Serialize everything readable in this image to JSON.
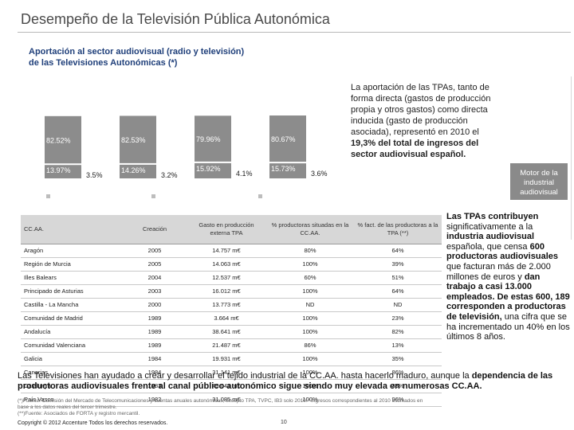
{
  "header": {
    "title": "Desempeño de la Televisión Pública Autonómica"
  },
  "chart_data": {
    "type": "bar",
    "title_line1": "Aportación al sector audiovisual (radio y televisión)",
    "title_line2": "de las Televisiones Autonómicas (*)",
    "categories": [
      "",
      "",
      "",
      ""
    ],
    "series": [
      {
        "name": "stacked-top",
        "values": [
          82.52,
          82.53,
          79.96,
          80.67
        ],
        "labels": [
          "82.52%",
          "82.53%",
          "79.96%",
          "80.67%"
        ],
        "color": "#8c8c8c"
      },
      {
        "name": "stacked-bottom",
        "values": [
          13.97,
          14.26,
          15.92,
          15.73
        ],
        "labels": [
          "13.97%",
          "14.26%",
          "15.92%",
          "15.73%"
        ],
        "color": "#8c8c8c"
      },
      {
        "name": "side",
        "values": [
          3.5,
          3.2,
          4.1,
          3.6
        ],
        "labels": [
          "3.5%",
          "3.2%",
          "4.1%",
          "3.6%"
        ],
        "color": "#8c8c8c"
      }
    ],
    "ylim": [
      0,
      100
    ],
    "legend": "bottom"
  },
  "side_text": {
    "part1": "La aportación de las TPAs, tanto de forma directa (gastos de producción propia y otros gastos) como directa inducida (gasto de producción asociada), representó en 2010 el ",
    "bold": "19,3% del total de ingresos del sector audiovisual español.",
    "badge": "Motor de la industrial audiovisual"
  },
  "table": {
    "headers": [
      "CC.AA.",
      "Creación",
      "Gasto en producción externa TPA",
      "% productoras situadas en la CC.AA.",
      "% fact. de las productoras a la TPA (**)"
    ],
    "rows": [
      [
        "Aragón",
        "2005",
        "14.757 m€",
        "80%",
        "64%"
      ],
      [
        "Región de Murcia",
        "2005",
        "14.063 m€",
        "100%",
        "39%"
      ],
      [
        "Illes Balears",
        "2004",
        "12.537 m€",
        "60%",
        "51%"
      ],
      [
        "Principado de Asturias",
        "2003",
        "16.012 m€",
        "100%",
        "64%"
      ],
      [
        "Castilla - La Mancha",
        "2000",
        "13.773 m€",
        "ND",
        "ND"
      ],
      [
        "Comunidad de Madrid",
        "1989",
        "3.664 m€",
        "100%",
        "23%"
      ],
      [
        "Andalucía",
        "1989",
        "38.641 m€",
        "100%",
        "82%"
      ],
      [
        "Comunidad Valenciana",
        "1989",
        "21.487 m€",
        "86%",
        "13%"
      ],
      [
        "Galicia",
        "1984",
        "19.931 m€",
        "100%",
        "35%"
      ],
      [
        "Canarias",
        "1984",
        "31.141 m€",
        "100%",
        "86%"
      ],
      [
        "Catalunya",
        "1983",
        "49.041 m€",
        "100%",
        "33%"
      ],
      [
        "País Vasco",
        "1982",
        "31.085 m€",
        "100%",
        "96%"
      ]
    ]
  },
  "tpas_text": {
    "b1": "Las TPAs contribuyen",
    "t1": " significativamente a la ",
    "b2": "industria audiovisual",
    "t2": " española, que censa ",
    "b3": "600 productoras audiovisuales",
    "t3": " que facturan más de 2.000 millones de euros y ",
    "b4": "dan trabajo a casi 13.000 empleados. De estas 600, 189 corresponden a productoras de televisión,",
    "t4": " una cifra que se ha incrementado un 40% en los últimos 8 años."
  },
  "bottom_text": {
    "normal": "Las Televisiones han ayudado a crear y desarrollar el tejido industrial de la CC.AA. hasta hacerlo maduro, aunque la ",
    "bold": "dependencia de las productoras audiovisuales frente al canal público autonómico sigue siendo muy elevada en numerosas CC.AA."
  },
  "notes": {
    "line1": "(*)Fuente: Comisión del Mercado de Telecomunicaciones y cuentas anuales autonómicas, excepto TPA, TVPC, IB3 solo 2010.* Ingresos correspondientes al 2010 estimados en base a los datos reales del tercer trimestre.",
    "line2": "(**)Fuente: Asociados de FORTA y registro mercantil."
  },
  "footer": {
    "copyright": "Copyright © 2012 Accenture Todos los derechos reservados.",
    "page": "10"
  },
  "colors": {
    "bar": "#8c8c8c",
    "title_blue": "#1f3f7a",
    "header_gray": "#d7d7d7"
  }
}
